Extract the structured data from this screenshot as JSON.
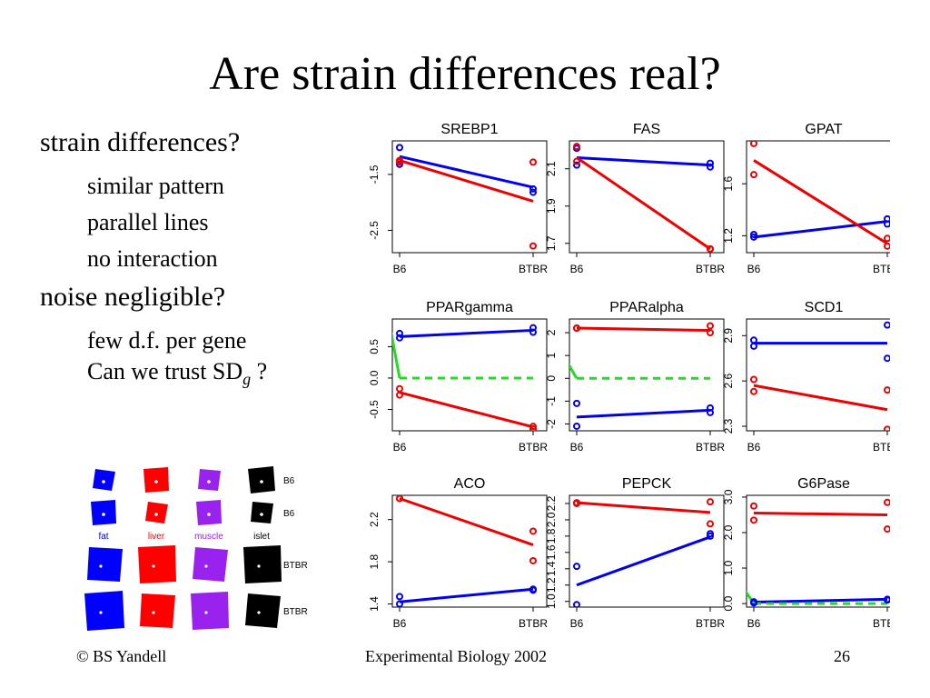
{
  "slide": {
    "title": "Are strain differences real?",
    "bullets": [
      {
        "text": "strain differences?",
        "level": 1
      },
      {
        "text": "similar pattern",
        "level": 2
      },
      {
        "text": "parallel lines",
        "level": 2
      },
      {
        "text": "no interaction",
        "level": 2
      },
      {
        "text": "noise negligible?",
        "level": 1
      },
      {
        "text": "few d.f. per gene",
        "level": 2
      }
    ],
    "last_bullet": {
      "prefix": "Can we trust SD",
      "subscript": "g",
      "suffix": " ?"
    },
    "footer": {
      "left": "© BS Yandell",
      "center": "Experimental Biology 2002",
      "right": "26"
    }
  },
  "colors": {
    "B6": "#0000ee",
    "BTBR": "#ee0000",
    "green": "#22dd22",
    "fat": "#0000ff",
    "liver": "#ff0000",
    "muscle": "#9a22ee",
    "islet": "#000000"
  },
  "chart_data": [
    {
      "type": "line",
      "title": "SREBP1",
      "categories": [
        "B6",
        "BTBR"
      ],
      "ylim": [
        -2.9,
        -0.9
      ],
      "yticks": [
        "-1.5",
        "-2.5"
      ],
      "ytick_values": [
        -1.5,
        -2.5
      ],
      "points": {
        "blue": [
          [
            0,
            -1.02
          ],
          [
            0,
            -1.32
          ],
          [
            1,
            -1.76
          ],
          [
            1,
            -1.82
          ]
        ],
        "red": [
          [
            0,
            -1.25
          ],
          [
            0,
            -1.28
          ],
          [
            1,
            -1.28
          ],
          [
            1,
            -2.78
          ]
        ]
      },
      "lines": {
        "blue": [
          [
            0,
            -1.18
          ],
          [
            1,
            -1.73
          ]
        ],
        "red": [
          [
            0,
            -1.25
          ],
          [
            1,
            -1.98
          ]
        ]
      }
    },
    {
      "type": "line",
      "title": "FAS",
      "categories": [
        "B6",
        "BTBR"
      ],
      "ylim": [
        1.65,
        2.25
      ],
      "yticks": [
        "2.1",
        "1.9",
        "1.7"
      ],
      "ytick_values": [
        2.1,
        1.9,
        1.7
      ],
      "points": {
        "blue": [
          [
            0,
            2.21
          ],
          [
            0,
            2.12
          ],
          [
            1,
            2.13
          ],
          [
            1,
            2.11
          ]
        ],
        "red": [
          [
            0,
            2.22
          ],
          [
            0,
            2.14
          ],
          [
            1,
            1.67
          ],
          [
            1,
            1.67
          ]
        ]
      },
      "lines": {
        "blue": [
          [
            0,
            2.16
          ],
          [
            1,
            2.12
          ]
        ],
        "red": [
          [
            0,
            2.16
          ],
          [
            1,
            1.67
          ]
        ]
      }
    },
    {
      "type": "line",
      "title": "GPAT",
      "categories": [
        "B6",
        "BTBR"
      ],
      "ylim": [
        1.07,
        1.93
      ],
      "yticks": [
        "1.6",
        "1.2"
      ],
      "ytick_values": [
        1.6,
        1.2
      ],
      "points": {
        "blue": [
          [
            0,
            1.21
          ],
          [
            0,
            1.19
          ],
          [
            1,
            1.33
          ],
          [
            1,
            1.29
          ]
        ],
        "red": [
          [
            0,
            1.91
          ],
          [
            0,
            1.67
          ],
          [
            1,
            1.18
          ],
          [
            1,
            1.12
          ]
        ]
      },
      "lines": {
        "blue": [
          [
            0,
            1.19
          ],
          [
            1,
            1.31
          ]
        ],
        "red": [
          [
            0,
            1.78
          ],
          [
            1,
            1.14
          ]
        ]
      }
    },
    {
      "type": "line",
      "title": "PPARgamma",
      "categories": [
        "B6",
        "BTBR"
      ],
      "ylim": [
        -0.84,
        0.94
      ],
      "yticks": [
        "0.5",
        "0.0",
        "-0.5"
      ],
      "ytick_values": [
        0.5,
        0.0,
        -0.5
      ],
      "points": {
        "blue": [
          [
            0,
            0.71
          ],
          [
            0,
            0.64
          ],
          [
            1,
            0.8
          ],
          [
            1,
            0.73
          ]
        ],
        "red": [
          [
            0,
            -0.17
          ],
          [
            0,
            -0.27
          ],
          [
            1,
            -0.77
          ],
          [
            1,
            -0.81
          ]
        ]
      },
      "lines": {
        "blue": [
          [
            0,
            0.66
          ],
          [
            1,
            0.76
          ]
        ],
        "red": [
          [
            0,
            -0.23
          ],
          [
            1,
            -0.78
          ]
        ],
        "green_dashed": [
          [
            0,
            0.0
          ],
          [
            1,
            0.0
          ]
        ],
        "green_solid": [
          [
            -0.08,
            0.92
          ],
          [
            0,
            0.0
          ]
        ]
      }
    },
    {
      "type": "line",
      "title": "PPARalpha",
      "categories": [
        "B6",
        "BTBR"
      ],
      "ylim": [
        -2.3,
        2.6
      ],
      "yticks": [
        "2",
        "1",
        "0",
        "-1",
        "-2"
      ],
      "ytick_values": [
        2,
        1,
        0,
        -1,
        -2
      ],
      "points": {
        "blue": [
          [
            0,
            -1.1
          ],
          [
            0,
            -2.1
          ],
          [
            1,
            -1.3
          ],
          [
            1,
            -1.5
          ]
        ],
        "red": [
          [
            0,
            2.2
          ],
          [
            0,
            2.2
          ],
          [
            1,
            2.3
          ],
          [
            1,
            2.0
          ]
        ]
      },
      "lines": {
        "blue": [
          [
            0,
            -1.7
          ],
          [
            1,
            -1.4
          ]
        ],
        "red": [
          [
            0,
            2.2
          ],
          [
            1,
            2.1
          ]
        ],
        "green_dashed": [
          [
            0,
            0.0
          ],
          [
            1,
            0.0
          ]
        ],
        "green_solid": [
          [
            -0.08,
            0.8
          ],
          [
            0,
            0.0
          ]
        ]
      }
    },
    {
      "type": "line",
      "title": "SCD1",
      "categories": [
        "B6",
        "BTBR"
      ],
      "ylim": [
        2.27,
        3.01
      ],
      "yticks": [
        "2.9",
        "2.6",
        "2.3"
      ],
      "ytick_values": [
        2.9,
        2.6,
        2.3
      ],
      "points": {
        "blue": [
          [
            0,
            2.87
          ],
          [
            0,
            2.83
          ],
          [
            1,
            2.97
          ],
          [
            1,
            2.75
          ]
        ],
        "red": [
          [
            0,
            2.61
          ],
          [
            0,
            2.53
          ],
          [
            1,
            2.54
          ],
          [
            1,
            2.28
          ]
        ]
      },
      "lines": {
        "blue": [
          [
            0,
            2.85
          ],
          [
            1,
            2.85
          ]
        ],
        "red": [
          [
            0,
            2.57
          ],
          [
            1,
            2.41
          ]
        ]
      }
    },
    {
      "type": "line",
      "title": "ACO",
      "categories": [
        "B6",
        "BTBR"
      ],
      "ylim": [
        1.37,
        2.43
      ],
      "yticks": [
        "2.2",
        "1.8",
        "1.4"
      ],
      "ytick_values": [
        2.2,
        1.8,
        1.4
      ],
      "points": {
        "blue": [
          [
            0,
            1.47
          ],
          [
            0,
            1.4
          ],
          [
            1,
            1.54
          ],
          [
            1,
            1.53
          ]
        ],
        "red": [
          [
            0,
            2.4
          ],
          [
            0,
            2.4
          ],
          [
            1,
            2.09
          ],
          [
            1,
            1.81
          ]
        ]
      },
      "lines": {
        "blue": [
          [
            0,
            1.42
          ],
          [
            1,
            1.54
          ]
        ],
        "red": [
          [
            0,
            2.4
          ],
          [
            1,
            1.96
          ]
        ]
      }
    },
    {
      "type": "line",
      "title": "PEPCK",
      "categories": [
        "B6",
        "BTBR"
      ],
      "ylim": [
        0.93,
        2.3
      ],
      "yticks": [
        "2.2",
        "2.0",
        "1.8",
        "1.6",
        "1.4",
        "1.2",
        "1.0"
      ],
      "ytick_values": [
        2.2,
        2.0,
        1.8,
        1.6,
        1.4,
        1.2,
        1.0
      ],
      "points": {
        "blue": [
          [
            0,
            1.43
          ],
          [
            0,
            0.96
          ],
          [
            1,
            1.83
          ],
          [
            1,
            1.8
          ]
        ],
        "red": [
          [
            0,
            2.2
          ],
          [
            0,
            2.21
          ],
          [
            1,
            2.22
          ],
          [
            1,
            1.95
          ]
        ]
      },
      "lines": {
        "blue": [
          [
            0,
            1.2
          ],
          [
            1,
            1.79
          ]
        ],
        "red": [
          [
            0,
            2.21
          ],
          [
            1,
            2.09
          ]
        ]
      }
    },
    {
      "type": "line",
      "title": "G6Pase",
      "categories": [
        "B6",
        "BTBR"
      ],
      "ylim": [
        -0.1,
        3.05
      ],
      "yticks": [
        "3.0",
        "2.0",
        "1.0",
        "0.0"
      ],
      "ytick_values": [
        3.0,
        2.0,
        1.0,
        0.0
      ],
      "points": {
        "blue": [
          [
            0,
            0.05
          ],
          [
            0,
            0.02
          ],
          [
            1,
            0.12
          ],
          [
            1,
            0.1
          ]
        ],
        "red": [
          [
            0,
            2.75
          ],
          [
            0,
            2.35
          ],
          [
            1,
            2.85
          ],
          [
            1,
            2.1
          ]
        ]
      },
      "lines": {
        "blue": [
          [
            0,
            0.04
          ],
          [
            1,
            0.12
          ]
        ],
        "red": [
          [
            0,
            2.55
          ],
          [
            1,
            2.5
          ]
        ],
        "green_dashed": [
          [
            0,
            0.0
          ],
          [
            1,
            0.0
          ]
        ],
        "green_solid": [
          [
            -0.08,
            0.45
          ],
          [
            0,
            0.0
          ]
        ]
      }
    }
  ],
  "tissue_grid": {
    "columns": [
      {
        "name": "fat",
        "color": "#0000ff",
        "label_color": "#0000ff"
      },
      {
        "name": "liver",
        "color": "#ff0000",
        "label_color": "#ff0000"
      },
      {
        "name": "muscle",
        "color": "#9a22ee",
        "label_color": "#9a22ee"
      },
      {
        "name": "islet",
        "color": "#000000",
        "label_color": "#000000"
      }
    ],
    "rows": [
      {
        "label": "B6",
        "size": "small"
      },
      {
        "label": "B6",
        "size": "small"
      },
      {
        "label": "BTBR",
        "size": "large"
      },
      {
        "label": "BTBR",
        "size": "large"
      }
    ]
  }
}
